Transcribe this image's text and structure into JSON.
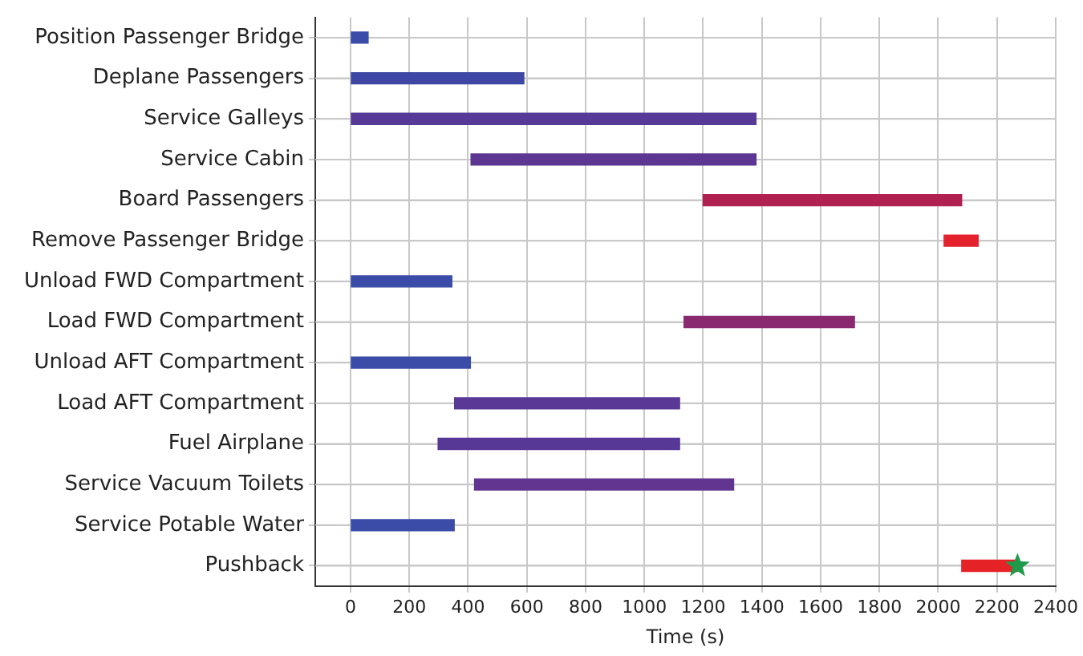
{
  "chart_data": {
    "type": "bar",
    "orientation": "horizontal",
    "xlabel": "Time (s)",
    "grid": true,
    "categories": [
      "Position Passenger Bridge",
      "Deplane Passengers",
      "Service Galleys",
      "Service Cabin",
      "Board Passengers",
      "Remove Passenger Bridge",
      "Unload FWD Compartment",
      "Load FWD Compartment",
      "Unload AFT Compartment",
      "Load AFT Compartment",
      "Fuel Airplane",
      "Service Vacuum Toilets",
      "Service Potable Water",
      "Pushback"
    ],
    "xlim": [
      -120,
      2400
    ],
    "xticks": [
      0,
      200,
      400,
      600,
      800,
      1000,
      1200,
      1400,
      1600,
      1800,
      2000,
      2200,
      2400
    ],
    "series": [
      {
        "type": "bar",
        "base": [
          0,
          0,
          0,
          410,
          1200,
          2020,
          0,
          1135,
          0,
          354,
          298,
          422,
          0,
          2080
        ],
        "values": [
          60,
          590,
          1380,
          970,
          880,
          116,
          345,
          580,
          408,
          766,
          822,
          882,
          353,
          190
        ],
        "colors": [
          "#3b4ba8",
          "#3e47a3",
          "#553a98",
          "#5d3592",
          "#b02050",
          "#e3222e",
          "#3b4ba8",
          "#8a2870",
          "#3b4ba8",
          "#5a3895",
          "#583896",
          "#623590",
          "#3b4ba8",
          "#e52226"
        ]
      },
      {
        "type": "scatter",
        "marker": "star",
        "color": "#1f9a4a",
        "x": [
          "Pushback"
        ],
        "values": [
          2270
        ]
      }
    ]
  }
}
